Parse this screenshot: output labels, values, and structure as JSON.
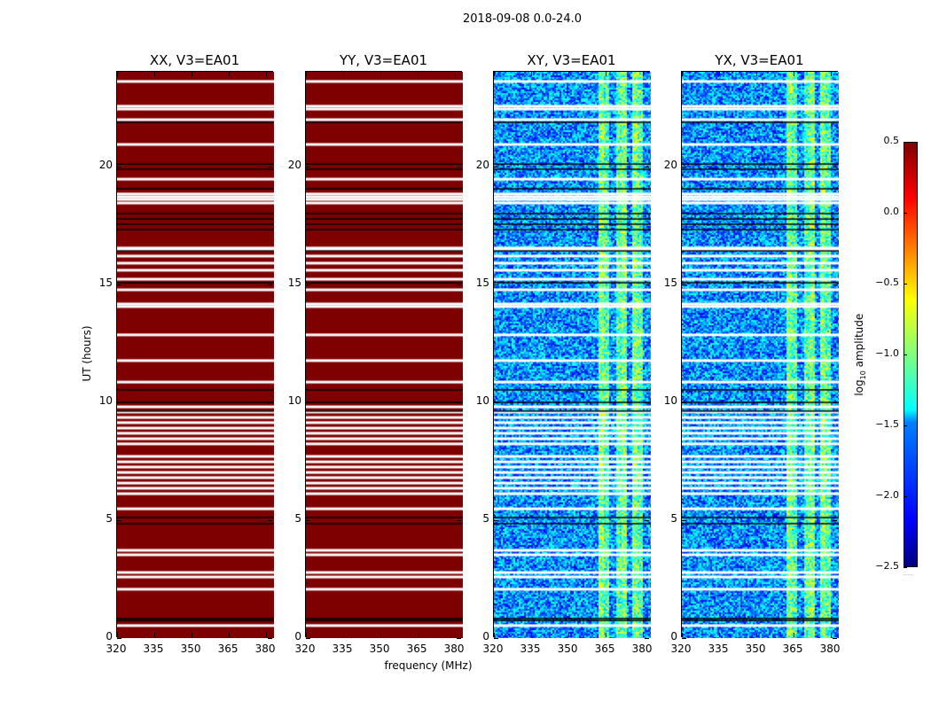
{
  "chart_data": {
    "type": "heatmap",
    "title": "2018-09-08 0.0-24.0",
    "xlabel": "frequency (MHz)",
    "ylabel": "UT (hours)",
    "xlim": [
      320,
      383
    ],
    "ylim": [
      0,
      24
    ],
    "xticks": [
      "320",
      "335",
      "350",
      "365",
      "380"
    ],
    "yticks": [
      "0",
      "5",
      "10",
      "15",
      "20"
    ],
    "colorbar": {
      "label": "log10 amplitude",
      "label_main": "log",
      "label_sub": "10",
      "label_rest": " amplitude",
      "range": [
        -2.5,
        0.5
      ],
      "ticks": [
        "0.5",
        "0.0",
        "−0.5",
        "−1.0",
        "−1.5",
        "−2.0",
        "−2.5"
      ],
      "cmap": "jet"
    },
    "panels": [
      {
        "title": "XX, V3=EA01",
        "kind": "constant",
        "value_log10": 0.5
      },
      {
        "title": "YY, V3=EA01",
        "kind": "constant",
        "value_log10": 0.5
      },
      {
        "title": "XY, V3=EA01",
        "kind": "noise",
        "background_log10": -1.7,
        "bright_band_mhz": [
          362,
          380
        ],
        "bright_band_log10": -1.0
      },
      {
        "title": "YX, V3=EA01",
        "kind": "noise",
        "background_log10": -1.7,
        "bright_band_mhz": [
          362,
          380
        ],
        "bright_band_log10": -1.0
      }
    ],
    "flagged_ut_white": [
      23.59,
      22.54,
      22.42,
      21.97,
      20.92,
      19.45,
      18.82,
      18.7,
      18.59,
      18.44,
      16.53,
      16.45,
      16.19,
      15.89,
      15.59,
      15.21,
      14.76,
      14.16,
      14.05,
      12.85,
      11.76,
      10.85,
      9.8,
      9.58,
      9.35,
      9.13,
      8.9,
      8.68,
      8.45,
      8.23,
      7.7,
      7.47,
      7.25,
      7.02,
      6.8,
      6.57,
      6.35,
      6.12,
      5.48,
      3.72,
      3.53,
      2.78,
      2.59,
      2.07,
      0.53
    ],
    "boundary_ut_black": [
      21.86,
      20.09,
      19.87,
      19.04,
      17.99,
      17.76,
      17.54,
      17.31,
      16.41,
      15.06,
      10.52,
      9.99,
      9.62,
      5.11,
      4.85,
      0.83,
      0.75
    ]
  }
}
